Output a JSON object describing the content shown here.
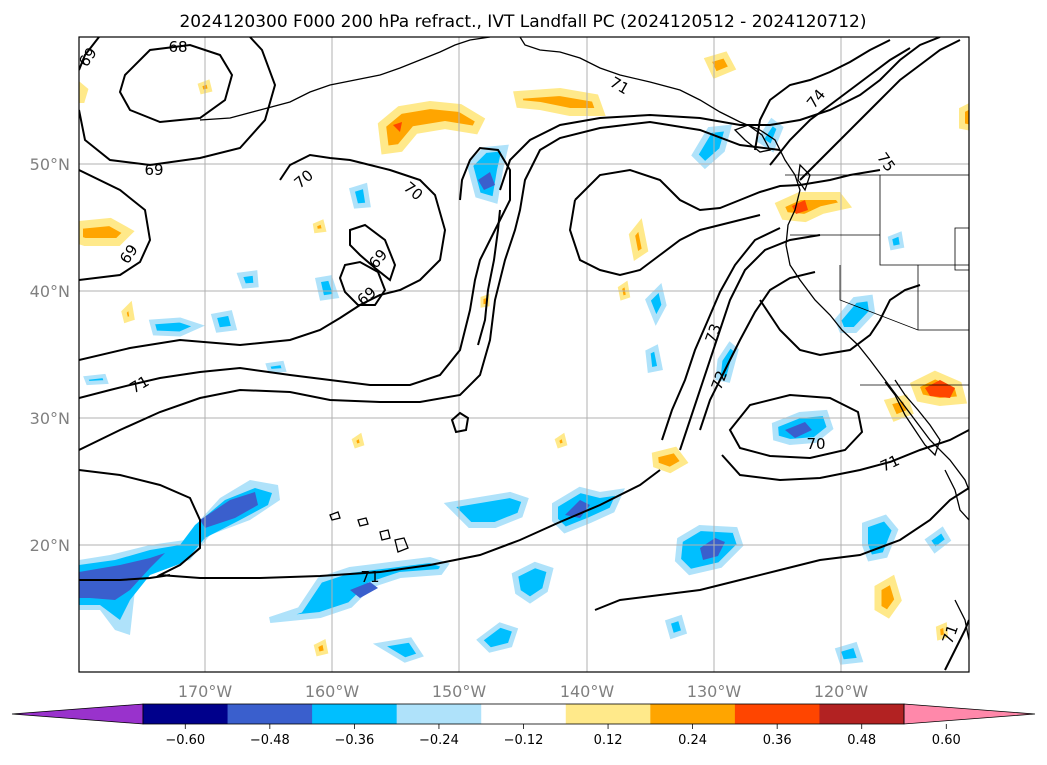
{
  "title": "2024120300 F000 200 hPa refract., IVT Landfall PC (2024120512 - 2024120712)",
  "map": {
    "lon_range": [
      180,
      110
    ],
    "lat_range": [
      10,
      60
    ],
    "x_ticks": [
      "170°W",
      "160°W",
      "150°W",
      "140°W",
      "130°W",
      "120°W"
    ],
    "y_ticks": [
      "50°N",
      "40°N",
      "30°N",
      "20°N"
    ],
    "grid": true
  },
  "contour_labels": [
    "68",
    "69",
    "69",
    "69",
    "69",
    "69",
    "70",
    "70",
    "71",
    "71",
    "71",
    "71",
    "71",
    "72",
    "73",
    "74",
    "75",
    "70"
  ],
  "colorbar": {
    "ticks": [
      "−0.60",
      "−0.48",
      "−0.36",
      "−0.24",
      "−0.12",
      "0.12",
      "0.24",
      "0.36",
      "0.48",
      "0.60"
    ],
    "colors": [
      "#9932cc",
      "#00008b",
      "#3a5fcd",
      "#00bfff",
      "#afe2fa",
      "#ffffff",
      "#ffe98a",
      "#ffa500",
      "#ff4500",
      "#b22222",
      "#ff88aa"
    ]
  },
  "shading_colors": {
    "c1": "#afe2fa",
    "c2": "#00bfff",
    "c3": "#3a5fcd",
    "w1": "#ffe98a",
    "w2": "#ffa500",
    "w3": "#ff4500"
  }
}
